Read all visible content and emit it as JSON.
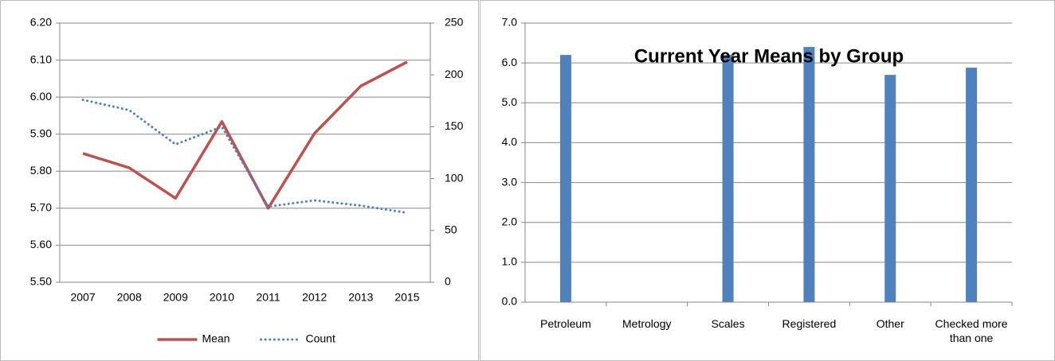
{
  "chart_data": [
    {
      "type": "line",
      "categories": [
        "2007",
        "2008",
        "2009",
        "2010",
        "2011",
        "2012",
        "2013",
        "2015"
      ],
      "series": [
        {
          "name": "Mean",
          "color": "#c0504d",
          "values": [
            5.848,
            5.809,
            5.727,
            5.934,
            5.7,
            5.902,
            6.03,
            6.095
          ]
        },
        {
          "name": "Count",
          "color": "#4f81bd",
          "axis": "y2",
          "values": [
            176,
            166,
            133,
            150,
            73,
            79,
            74,
            67
          ]
        }
      ],
      "ylim": [
        5.5,
        6.2
      ],
      "yticks": [
        {
          "value": 5.5,
          "label": "5.50"
        },
        {
          "value": 5.6,
          "label": "5.60"
        },
        {
          "value": 5.7,
          "label": "5.70"
        },
        {
          "value": 5.8,
          "label": "5.80"
        },
        {
          "value": 5.9,
          "label": "5.90"
        },
        {
          "value": 6.0,
          "label": "6.00"
        },
        {
          "value": 6.1,
          "label": "6.10"
        },
        {
          "value": 6.2,
          "label": "6.20"
        }
      ],
      "y2lim": [
        0,
        250
      ],
      "y2ticks": [
        0,
        50,
        100,
        150,
        200,
        250
      ],
      "grid": true,
      "legend": "bottom"
    },
    {
      "type": "bar",
      "title": "Current Year Means by Group",
      "categories": [
        "Petroleum",
        "Metrology",
        "Scales",
        "Registered",
        "Other",
        "Checked more than one"
      ],
      "values": [
        6.2,
        null,
        6.2,
        6.4,
        5.7,
        5.88
      ],
      "color": "#4f81bd",
      "ylim": [
        0,
        7
      ],
      "yticks": [
        {
          "value": 0,
          "label": "0.0"
        },
        {
          "value": 1,
          "label": "1.0"
        },
        {
          "value": 2,
          "label": "2.0"
        },
        {
          "value": 3,
          "label": "3.0"
        },
        {
          "value": 4,
          "label": "4.0"
        },
        {
          "value": 5,
          "label": "5.0"
        },
        {
          "value": 6,
          "label": "6.0"
        },
        {
          "value": 7,
          "label": "7.0"
        }
      ],
      "grid": true
    }
  ]
}
